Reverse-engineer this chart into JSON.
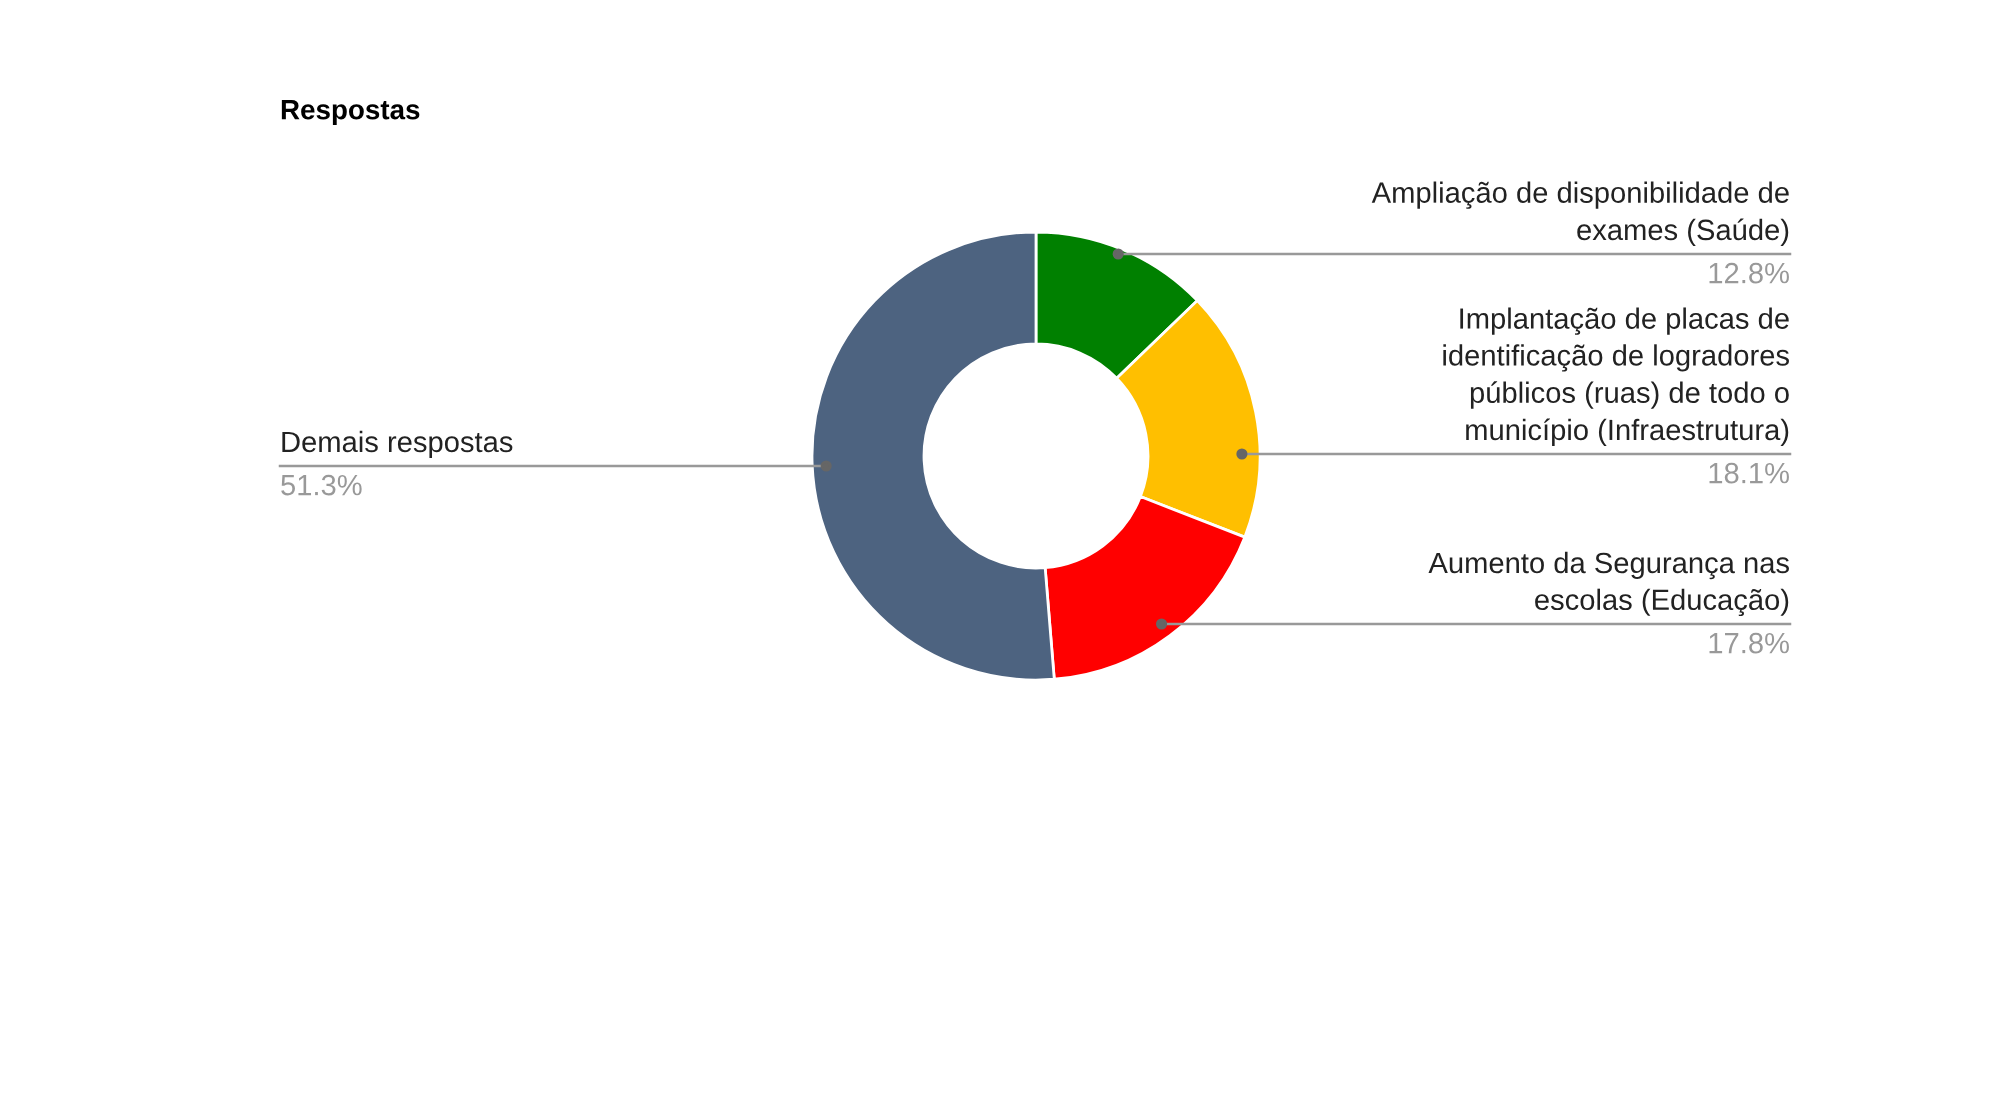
{
  "chart_data": {
    "type": "donut",
    "title": "Respostas",
    "categories": [
      "Ampliação de disponibilidade de exames (Saúde)",
      "Implantação de placas de identificação de logradores públicos (ruas) de todo o município (Infraestrutura)",
      "Aumento da Segurança nas escolas (Educação)",
      "Demais respostas"
    ],
    "values": [
      12.8,
      18.1,
      17.8,
      51.3
    ],
    "value_labels": [
      "12.8%",
      "18.1%",
      "17.8%",
      "51.3%"
    ],
    "colors": [
      "#008000",
      "#ffbf00",
      "#ff0000",
      "#4d6380"
    ],
    "legend": false
  }
}
